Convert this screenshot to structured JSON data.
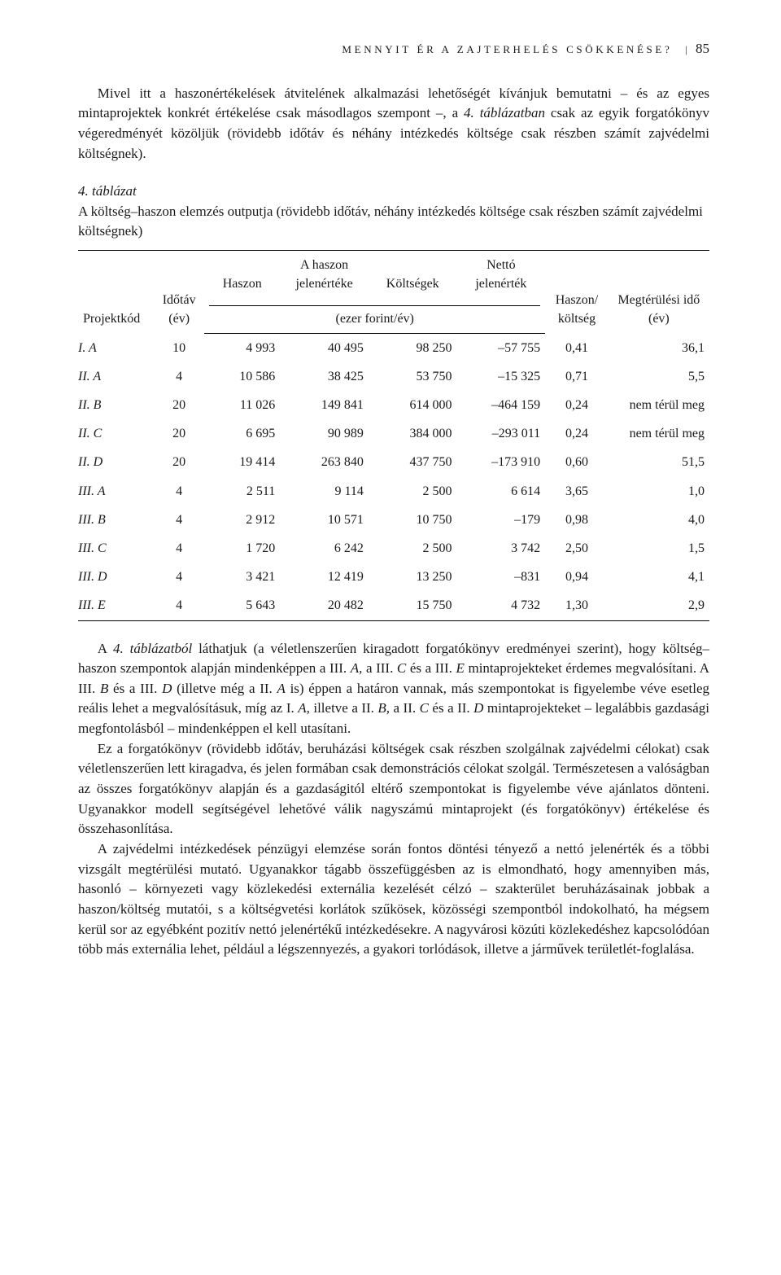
{
  "runningHead": {
    "title": "MENNYIT ÉR A ZAJTERHELÉS CSÖKKENÉSE?",
    "separator": "|",
    "pageNumber": "85"
  },
  "para1_a": "Mivel itt a haszonértékelések átvitelének alkalmazási lehetőségét kívánjuk bemutatni – és az egyes mintaprojektek konkrét értékelése csak másodlagos szempont –, a ",
  "para1_it1": "4. táblázatban",
  "para1_b": " csak az egyik forgatókönyv végeredményét közöljük (rövidebb időtáv és néhány intézkedés költsége csak részben számít zajvédelmi költségnek).",
  "tableCaption_it": "4. táblázat",
  "tableCaption_rest": "A költség–haszon elemzés outputja (rövidebb időtáv, néhány intézkedés költsége csak részben számít zajvédelmi költségnek)",
  "headers": {
    "projektkod": "Projektkód",
    "idotav": "Időtáv (év)",
    "haszon": "Haszon",
    "haszon_jelenerteke": "A haszon jelenértéke",
    "koltsegek": "Költségek",
    "netto_jelenertek": "Nettó jelenérték",
    "haszon_koltseg": "Haszon/ költség",
    "megterulesi_ido": "Megtérülési idő (év)",
    "unit": "(ezer forint/év)"
  },
  "rows": [
    {
      "code": "I. A",
      "ido": "10",
      "haszon": "4 993",
      "jel": "40 495",
      "kolt": "98 250",
      "netto": "–57 755",
      "hk": "0,41",
      "meg": "36,1"
    },
    {
      "code": "II. A",
      "ido": "4",
      "haszon": "10 586",
      "jel": "38 425",
      "kolt": "53 750",
      "netto": "–15 325",
      "hk": "0,71",
      "meg": "5,5"
    },
    {
      "code": "II. B",
      "ido": "20",
      "haszon": "11 026",
      "jel": "149 841",
      "kolt": "614 000",
      "netto": "–464 159",
      "hk": "0,24",
      "meg": "nem térül meg"
    },
    {
      "code": "II. C",
      "ido": "20",
      "haszon": "6 695",
      "jel": "90 989",
      "kolt": "384 000",
      "netto": "–293 011",
      "hk": "0,24",
      "meg": "nem térül meg"
    },
    {
      "code": "II. D",
      "ido": "20",
      "haszon": "19 414",
      "jel": "263 840",
      "kolt": "437 750",
      "netto": "–173 910",
      "hk": "0,60",
      "meg": "51,5"
    },
    {
      "code": "III. A",
      "ido": "4",
      "haszon": "2 511",
      "jel": "9 114",
      "kolt": "2 500",
      "netto": "6 614",
      "hk": "3,65",
      "meg": "1,0"
    },
    {
      "code": "III. B",
      "ido": "4",
      "haszon": "2 912",
      "jel": "10 571",
      "kolt": "10 750",
      "netto": "–179",
      "hk": "0,98",
      "meg": "4,0"
    },
    {
      "code": "III. C",
      "ido": "4",
      "haszon": "1 720",
      "jel": "6 242",
      "kolt": "2 500",
      "netto": "3 742",
      "hk": "2,50",
      "meg": "1,5"
    },
    {
      "code": "III. D",
      "ido": "4",
      "haszon": "3 421",
      "jel": "12 419",
      "kolt": "13 250",
      "netto": "–831",
      "hk": "0,94",
      "meg": "4,1"
    },
    {
      "code": "III. E",
      "ido": "4",
      "haszon": "5 643",
      "jel": "20 482",
      "kolt": "15 750",
      "netto": "4 732",
      "hk": "1,30",
      "meg": "2,9"
    }
  ],
  "para2_a": "A ",
  "para2_it": "4. táblázatból",
  "para2_b": " láthatjuk (a véletlenszerűen kiragadott forgatókönyv eredményei szerint), hogy költség–haszon szempontok alapján mindenképpen a III. ",
  "para2_itA": "A,",
  "para2_c": " a III. ",
  "para2_itC": "C",
  "para2_d": " és a III. ",
  "para2_itE": "E",
  "para2_e": " mintaprojekteket érdemes megvalósítani. A III. ",
  "para2_itB": "B",
  "para2_f": " és a III. ",
  "para2_itD": "D",
  "para2_g": " (illetve még a II. ",
  "para2_itA2": "A",
  "para2_h": " is) éppen a határon vannak, más szempontokat is figyelembe véve esetleg reális lehet a megvalósításuk, míg az I. ",
  "para2_itA3": "A,",
  "para2_i": " illetve a II. ",
  "para2_itB2": "B,",
  "para2_j": " a II. ",
  "para2_itC2": "C",
  "para2_k": " és a II. ",
  "para2_itD2": "D",
  "para2_l": " mintaprojekteket – legalábbis gazdasági megfontolásból – mindenképpen el kell utasítani.",
  "para3": "Ez a forgatókönyv (rövidebb időtáv, beruházási költségek csak részben szolgálnak zajvédelmi célokat) csak véletlenszerűen lett kiragadva, és jelen formában csak demonstrációs célokat szolgál. Természetesen a valóságban az összes forgatókönyv alapján és a gazdaságitól eltérő szempontokat is figyelembe véve ajánlatos dönteni. Ugyanakkor modell segítségével lehetővé válik nagyszámú mintaprojekt (és forgatókönyv) értékelése és összehasonlítása.",
  "para4": "A zajvédelmi intézkedések pénzügyi elemzése során fontos döntési tényező a nettó jelenérték és a többi vizsgált megtérülési mutató. Ugyanakkor tágabb összefüggésben az is elmondható, hogy amennyiben más, hasonló – környezeti vagy közlekedési externália kezelését célzó – szakterület beruházásainak jobbak a haszon/költség mutatói, s a költségvetési korlátok szűkösek, közösségi szempontból indokolható, ha mégsem kerül sor az egyébként pozitív nettó jelenértékű intézkedésekre. A nagyvárosi közúti közlekedéshez kapcsolódóan több más externália lehet, például a légszennyezés, a gyakori torlódások, illetve a járművek területlét-foglalása."
}
